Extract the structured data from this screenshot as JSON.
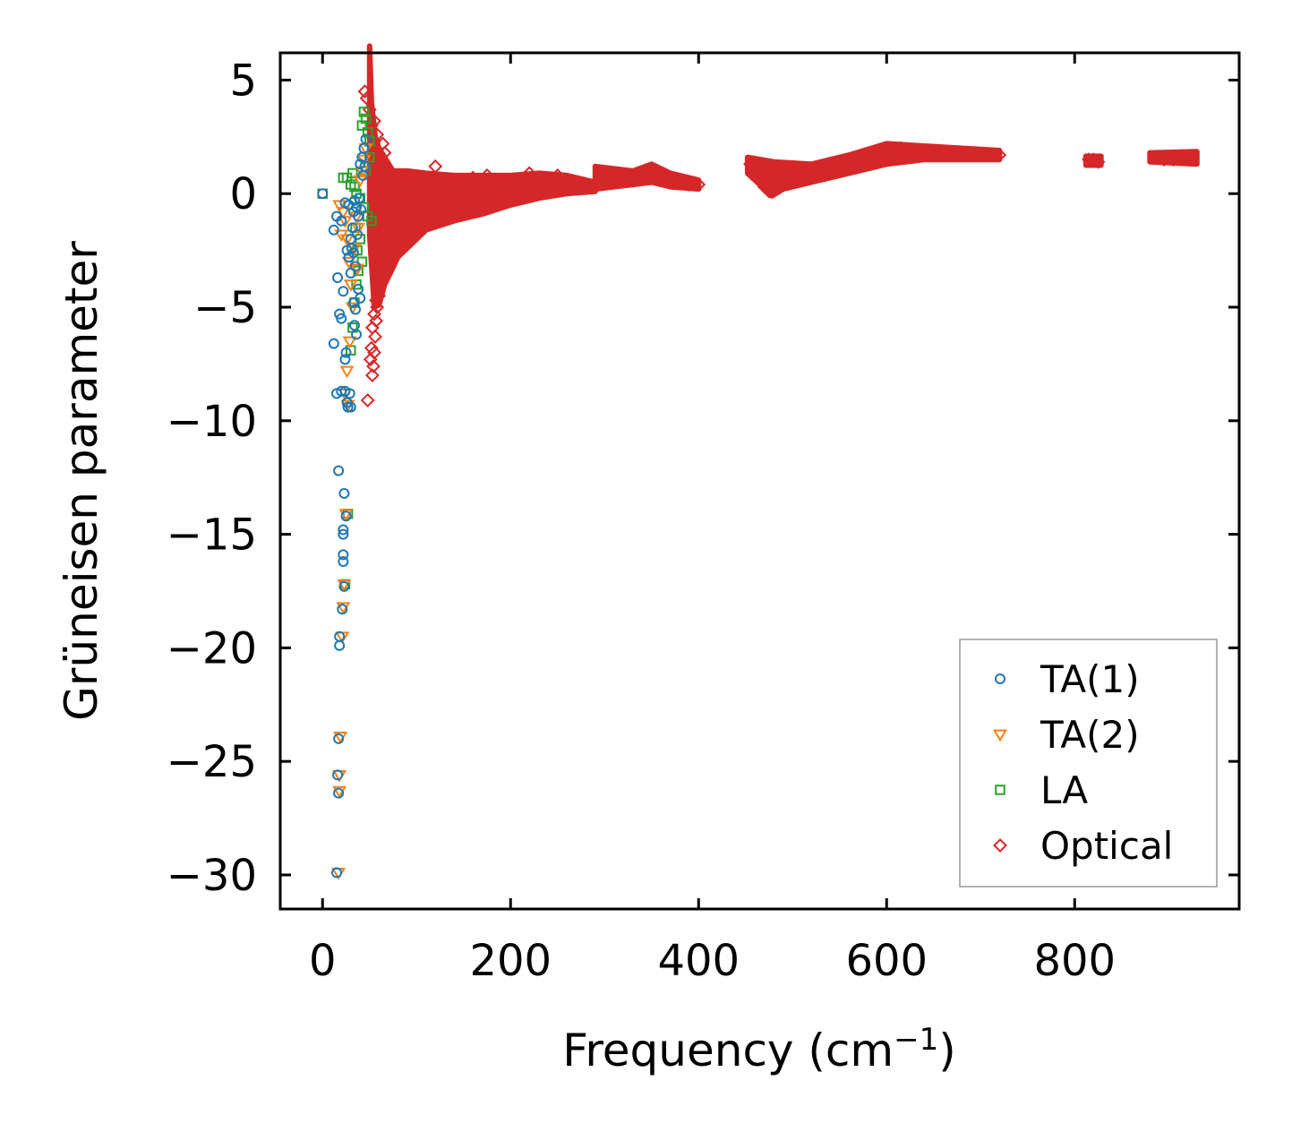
{
  "chart_data": {
    "type": "scatter",
    "title": "",
    "xlabel": "Frequency (cm",
    "xlabel_sup": "−1",
    "xlabel_close": ")",
    "ylabel": "Grüneisen parameter",
    "xlim": [
      -45,
      975
    ],
    "ylim": [
      -31.5,
      6.2
    ],
    "xticks": [
      0,
      200,
      400,
      600,
      800
    ],
    "xtick_labels": [
      "0",
      "200",
      "400",
      "600",
      "800"
    ],
    "yticks": [
      5,
      0,
      -5,
      -10,
      -15,
      -20,
      -25,
      -30
    ],
    "ytick_labels": [
      "5",
      "0",
      "−5",
      "−10",
      "−15",
      "−20",
      "−25",
      "−30"
    ],
    "grid": false,
    "legend_position": "lower-right",
    "colors": {
      "TA(1)": "#1f77b4",
      "TA(2)": "#ff7f0e",
      "LA": "#2ca02c",
      "Optical": "#d62728"
    },
    "series": [
      {
        "name": "TA(1)",
        "marker": "circle",
        "points": [
          [
            0,
            0
          ],
          [
            12,
            -1.6
          ],
          [
            15,
            -1.0
          ],
          [
            16,
            -3.7
          ],
          [
            18,
            -5.3
          ],
          [
            12,
            -6.6
          ],
          [
            20,
            -5.5
          ],
          [
            22,
            -4.3
          ],
          [
            25,
            -7.0
          ],
          [
            24,
            -7.3
          ],
          [
            15,
            -8.8
          ],
          [
            20,
            -8.7
          ],
          [
            24,
            -8.7
          ],
          [
            26,
            -9.2
          ],
          [
            27,
            -9.4
          ],
          [
            30,
            -9.4
          ],
          [
            29,
            -8.8
          ],
          [
            17,
            -12.2
          ],
          [
            23,
            -13.2
          ],
          [
            25,
            -14.2
          ],
          [
            22,
            -14.8
          ],
          [
            22,
            -15.0
          ],
          [
            22,
            -15.9
          ],
          [
            22,
            -16.2
          ],
          [
            23,
            -17.3
          ],
          [
            21,
            -18.3
          ],
          [
            18,
            -19.5
          ],
          [
            18,
            -19.9
          ],
          [
            17,
            -24.0
          ],
          [
            16,
            -25.6
          ],
          [
            17,
            -26.4
          ],
          [
            15,
            -29.9
          ],
          [
            26,
            -2.5
          ],
          [
            28,
            -2.8
          ],
          [
            30,
            -2.0
          ],
          [
            32,
            -1.5
          ],
          [
            33,
            -0.8
          ],
          [
            34,
            -0.3
          ],
          [
            36,
            -0.6
          ],
          [
            38,
            -1.0
          ],
          [
            30,
            -3.5
          ],
          [
            35,
            -3.2
          ],
          [
            38,
            -4.2
          ],
          [
            40,
            -4.6
          ],
          [
            34,
            -5.8
          ],
          [
            36,
            -6.2
          ],
          [
            31,
            -2.4
          ],
          [
            33,
            -4.8
          ],
          [
            40,
            1.3
          ],
          [
            42,
            1.6
          ],
          [
            44,
            2.0
          ],
          [
            45,
            1.2
          ],
          [
            46,
            2.4
          ],
          [
            43,
            0.8
          ],
          [
            39,
            -0.2
          ],
          [
            41,
            -0.7
          ],
          [
            20,
            -1.2
          ],
          [
            24,
            -0.4
          ],
          [
            28,
            -0.5
          ],
          [
            37,
            -1.8
          ],
          [
            33,
            -2.6
          ],
          [
            35,
            -5.1
          ]
        ]
      },
      {
        "name": "TA(2)",
        "marker": "triangle-down",
        "points": [
          [
            18,
            -0.5
          ],
          [
            22,
            -0.8
          ],
          [
            24,
            -1.2
          ],
          [
            20,
            -1.8
          ],
          [
            26,
            -2.0
          ],
          [
            28,
            -3.0
          ],
          [
            30,
            -4.0
          ],
          [
            32,
            -5.0
          ],
          [
            29,
            -6.5
          ],
          [
            26,
            -7.8
          ],
          [
            24,
            -8.8
          ],
          [
            27,
            -9.3
          ],
          [
            25,
            -14.1
          ],
          [
            23,
            -17.2
          ],
          [
            22,
            -18.2
          ],
          [
            21,
            -19.5
          ],
          [
            19,
            -23.9
          ],
          [
            18,
            -25.6
          ],
          [
            18,
            -26.3
          ],
          [
            17,
            -29.9
          ],
          [
            36,
            -1.0
          ],
          [
            38,
            -1.5
          ],
          [
            40,
            0.6
          ],
          [
            42,
            1.0
          ],
          [
            44,
            1.5
          ],
          [
            46,
            2.0
          ],
          [
            34,
            -2.4
          ],
          [
            37,
            -3.3
          ]
        ]
      },
      {
        "name": "LA",
        "marker": "square",
        "points": [
          [
            0,
            0
          ],
          [
            22,
            0.7
          ],
          [
            26,
            0.7
          ],
          [
            30,
            0.4
          ],
          [
            32,
            0.9
          ],
          [
            34,
            0.3
          ],
          [
            36,
            0.0
          ],
          [
            40,
            -0.2
          ],
          [
            44,
            -0.6
          ],
          [
            48,
            -1.0
          ],
          [
            52,
            -1.2
          ],
          [
            35,
            -1.5
          ],
          [
            37,
            -2.5
          ],
          [
            38,
            -3.4
          ],
          [
            36,
            -4.0
          ],
          [
            34,
            -4.8
          ],
          [
            32,
            -5.9
          ],
          [
            30,
            -6.9
          ],
          [
            44,
            3.6
          ],
          [
            46,
            3.3
          ],
          [
            42,
            3.0
          ],
          [
            48,
            2.7
          ],
          [
            50,
            2.3
          ],
          [
            50,
            1.6
          ],
          [
            46,
            1.0
          ],
          [
            27,
            -14.1
          ],
          [
            24,
            -17.2
          ],
          [
            40,
            -2.0
          ],
          [
            42,
            -3.0
          ]
        ]
      },
      {
        "name": "Optical",
        "marker": "diamond",
        "points": [
          [
            45,
            4.5
          ],
          [
            47,
            4.2
          ],
          [
            50,
            3.7
          ],
          [
            52,
            3.0
          ],
          [
            55,
            3.2
          ],
          [
            58,
            2.6
          ],
          [
            55,
            2.3
          ],
          [
            48,
            -9.1
          ],
          [
            53,
            -8.0
          ],
          [
            54,
            -7.6
          ],
          [
            55,
            -7.0
          ],
          [
            56,
            -6.3
          ],
          [
            57,
            -5.6
          ],
          [
            58,
            -5.0
          ],
          [
            60,
            -4.5
          ],
          [
            52,
            -6.8
          ],
          [
            51,
            -7.3
          ],
          [
            53,
            -5.9
          ],
          [
            55,
            -5.3
          ],
          [
            57,
            -4.7
          ],
          [
            120,
            1.2
          ],
          [
            60,
            1.2
          ],
          [
            62,
            1.6
          ],
          [
            64,
            2.2
          ],
          [
            66,
            1.8
          ],
          [
            70,
            0.8
          ],
          [
            75,
            0.5
          ],
          [
            80,
            0.2
          ],
          [
            85,
            0.3
          ],
          [
            90,
            0.1
          ],
          [
            95,
            0.6
          ],
          [
            100,
            0.7
          ],
          [
            110,
            0.4
          ],
          [
            130,
            0.6
          ],
          [
            150,
            0.5
          ],
          [
            160,
            0.7
          ],
          [
            175,
            0.8
          ],
          [
            190,
            0.4
          ],
          [
            200,
            0.3
          ],
          [
            210,
            0.6
          ],
          [
            220,
            0.9
          ],
          [
            230,
            0.7
          ],
          [
            250,
            0.8
          ],
          [
            270,
            0.5
          ],
          [
            290,
            0.4
          ],
          [
            300,
            0.9
          ],
          [
            320,
            0.6
          ],
          [
            340,
            0.8
          ],
          [
            355,
            1.0
          ],
          [
            370,
            0.6
          ],
          [
            390,
            0.4
          ],
          [
            400,
            0.4
          ],
          [
            455,
            1.3
          ],
          [
            460,
            1.0
          ],
          [
            465,
            0.7
          ],
          [
            470,
            0.3
          ],
          [
            475,
            0.1
          ],
          [
            480,
            0.3
          ],
          [
            490,
            0.6
          ],
          [
            500,
            0.8
          ],
          [
            510,
            1.0
          ],
          [
            520,
            0.9
          ],
          [
            540,
            1.0
          ],
          [
            555,
            1.3
          ],
          [
            565,
            1.4
          ],
          [
            575,
            1.5
          ],
          [
            590,
            1.6
          ],
          [
            600,
            1.8
          ],
          [
            615,
            2.0
          ],
          [
            630,
            1.8
          ],
          [
            650,
            1.8
          ],
          [
            670,
            1.7
          ],
          [
            690,
            1.7
          ],
          [
            710,
            1.7
          ],
          [
            720,
            1.7
          ],
          [
            815,
            1.5
          ],
          [
            820,
            1.5
          ],
          [
            825,
            1.4
          ],
          [
            885,
            1.6
          ],
          [
            895,
            1.5
          ],
          [
            905,
            1.5
          ],
          [
            915,
            1.6
          ],
          [
            925,
            1.6
          ]
        ]
      }
    ],
    "optical_bands": [
      {
        "name": "dense-core",
        "x_upper": [
          [
            50,
            6.5
          ],
          [
            52,
            4.0
          ],
          [
            56,
            2.5
          ],
          [
            60,
            2.0
          ],
          [
            66,
            1.6
          ],
          [
            75,
            1.0
          ],
          [
            90,
            1.0
          ],
          [
            110,
            0.9
          ],
          [
            140,
            0.8
          ],
          [
            170,
            0.8
          ],
          [
            200,
            0.8
          ],
          [
            230,
            0.9
          ],
          [
            260,
            0.8
          ],
          [
            290,
            0.5
          ]
        ],
        "x_lower": [
          [
            290,
            0.1
          ],
          [
            260,
            0.0
          ],
          [
            230,
            -0.2
          ],
          [
            200,
            -0.5
          ],
          [
            170,
            -0.9
          ],
          [
            140,
            -1.2
          ],
          [
            110,
            -1.6
          ],
          [
            90,
            -2.4
          ],
          [
            80,
            -2.8
          ],
          [
            72,
            -3.5
          ],
          [
            66,
            -4.0
          ],
          [
            60,
            -4.9
          ],
          [
            55,
            -5.0
          ],
          [
            50,
            -1.8
          ]
        ]
      },
      {
        "name": "band-300-400",
        "x_upper": [
          [
            290,
            1.2
          ],
          [
            330,
            1.0
          ],
          [
            350,
            1.3
          ],
          [
            370,
            0.9
          ],
          [
            400,
            0.6
          ]
        ],
        "x_lower": [
          [
            400,
            0.2
          ],
          [
            370,
            0.3
          ],
          [
            350,
            0.5
          ],
          [
            330,
            0.4
          ],
          [
            290,
            0.2
          ]
        ]
      },
      {
        "name": "band-450-720",
        "x_upper": [
          [
            452,
            1.6
          ],
          [
            480,
            1.4
          ],
          [
            520,
            1.3
          ],
          [
            560,
            1.7
          ],
          [
            600,
            2.2
          ],
          [
            640,
            2.1
          ],
          [
            680,
            2.0
          ],
          [
            720,
            1.9
          ]
        ],
        "x_lower": [
          [
            720,
            1.5
          ],
          [
            680,
            1.5
          ],
          [
            640,
            1.5
          ],
          [
            600,
            1.3
          ],
          [
            560,
            0.9
          ],
          [
            520,
            0.5
          ],
          [
            490,
            0.2
          ],
          [
            478,
            -0.1
          ],
          [
            465,
            0.4
          ],
          [
            452,
            0.9
          ]
        ]
      },
      {
        "name": "band-815-825",
        "x_upper": [
          [
            812,
            1.65
          ],
          [
            828,
            1.65
          ]
        ],
        "x_lower": [
          [
            828,
            1.25
          ],
          [
            812,
            1.25
          ]
        ]
      },
      {
        "name": "band-880-930",
        "x_upper": [
          [
            880,
            1.8
          ],
          [
            930,
            1.85
          ]
        ],
        "x_lower": [
          [
            930,
            1.3
          ],
          [
            880,
            1.4
          ]
        ]
      }
    ]
  }
}
